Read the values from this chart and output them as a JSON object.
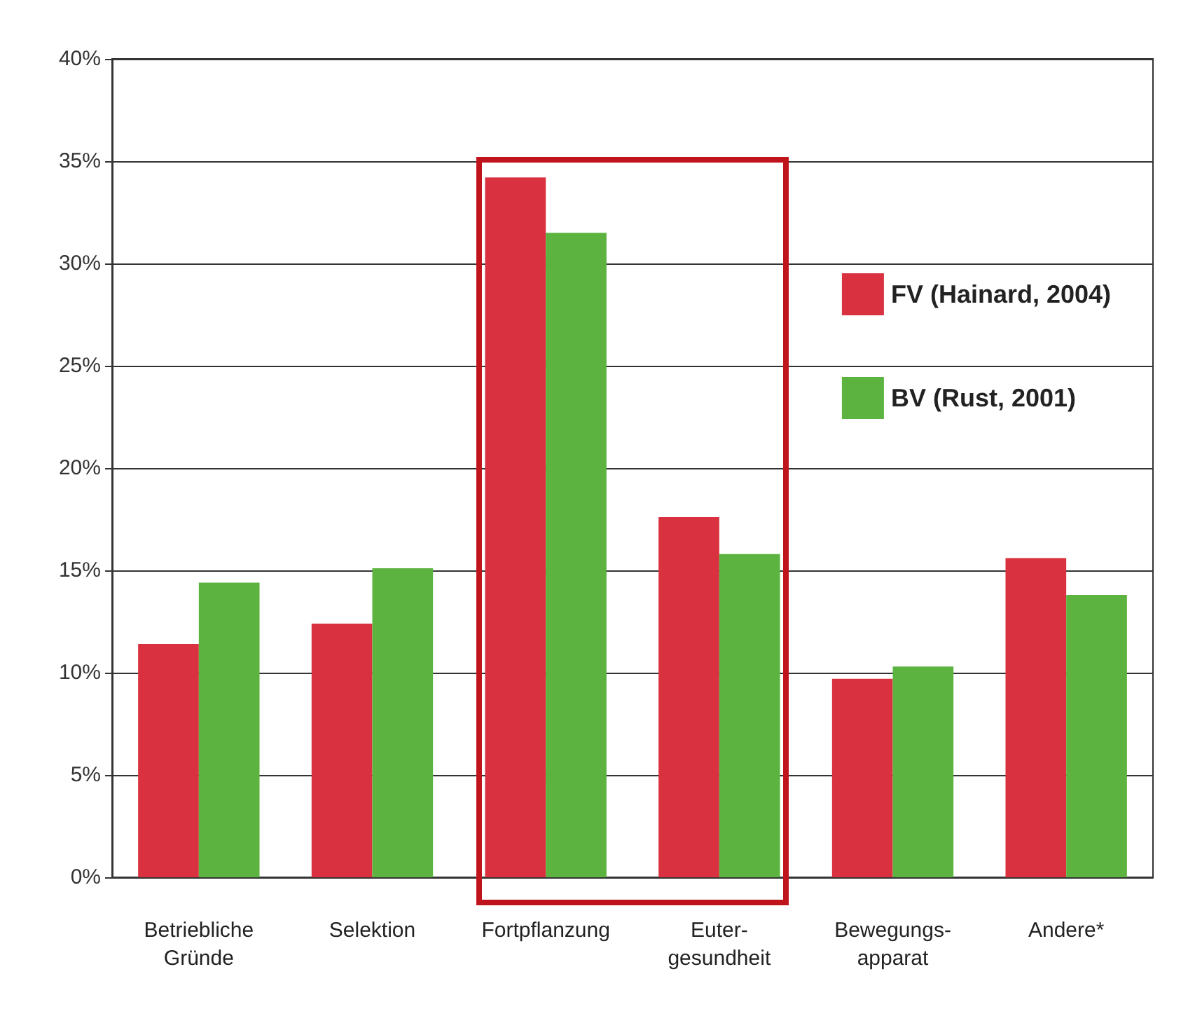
{
  "chart_data": {
    "type": "bar",
    "categories": [
      "Betriebliche\nGründe",
      "Selektion",
      "Fortpflanzung",
      "Euter-\ngesundheit",
      "Bewegungs-\napparat",
      "Andere*"
    ],
    "series": [
      {
        "name": "FV (Hainard, 2004)",
        "color": "#d9313f",
        "values": [
          11.4,
          12.4,
          34.2,
          17.6,
          9.7,
          15.6
        ]
      },
      {
        "name": "BV (Rust, 2001)",
        "color": "#5cb33f",
        "values": [
          14.4,
          15.1,
          31.5,
          15.8,
          10.3,
          13.8
        ]
      }
    ],
    "ylim": [
      0,
      40
    ],
    "yticks": [
      {
        "value": 0,
        "label": "0%"
      },
      {
        "value": 5,
        "label": "5%"
      },
      {
        "value": 10,
        "label": "10%"
      },
      {
        "value": 15,
        "label": "15%"
      },
      {
        "value": 20,
        "label": "20%"
      },
      {
        "value": 25,
        "label": "25%"
      },
      {
        "value": 30,
        "label": "30%"
      },
      {
        "value": 35,
        "label": "35%"
      },
      {
        "value": 40,
        "label": "40%"
      }
    ],
    "grid": "y",
    "legend": "top right"
  }
}
